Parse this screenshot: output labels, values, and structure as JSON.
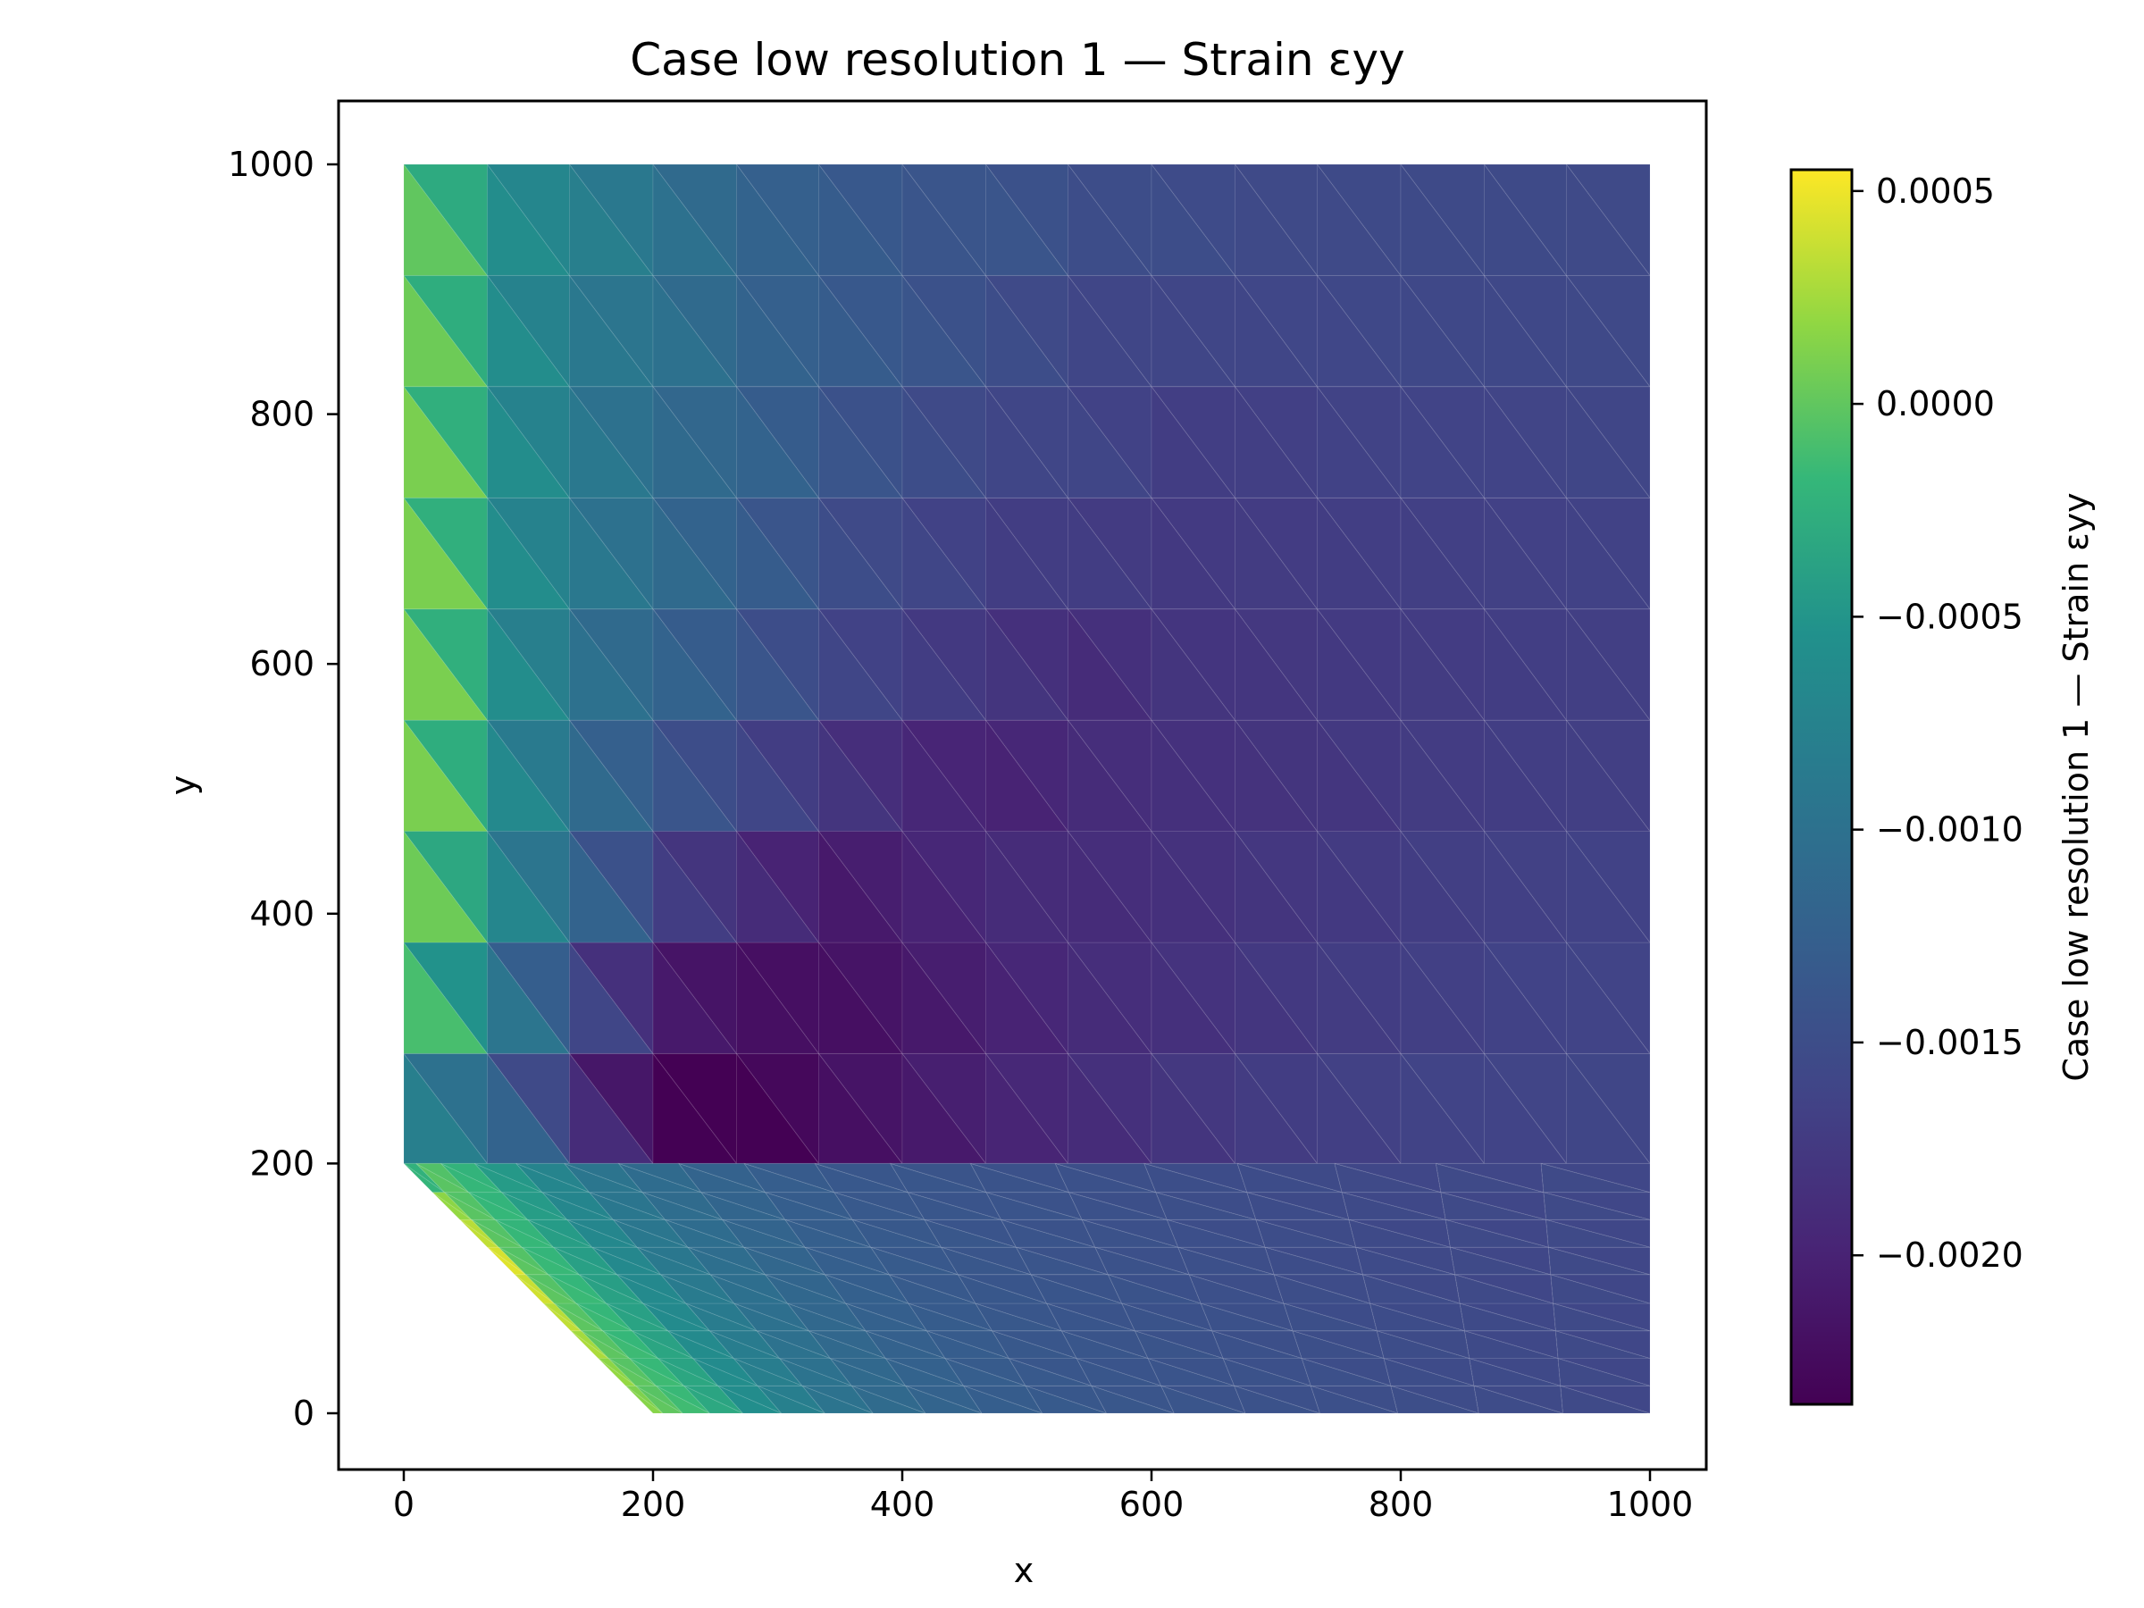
{
  "chart_data": {
    "type": "heatmap",
    "title": "Case low resolution 1 — Strain εyy",
    "xlabel": "x",
    "ylabel": "y",
    "xlim": [
      -50,
      1050
    ],
    "ylim": [
      -50,
      1050
    ],
    "x_ticks": [
      0,
      200,
      400,
      600,
      800,
      1000
    ],
    "y_ticks": [
      0,
      200,
      400,
      600,
      800,
      1000
    ],
    "x_tick_labels": [
      "0",
      "200",
      "400",
      "600",
      "800",
      "1000"
    ],
    "y_tick_labels": [
      "0",
      "200",
      "400",
      "600",
      "800",
      "1000"
    ],
    "domain_outline": [
      [
        0,
        200
      ],
      [
        0,
        1000
      ],
      [
        1000,
        1000
      ],
      [
        1000,
        0
      ],
      [
        200,
        0
      ]
    ],
    "colormap": "viridis",
    "colorbar": {
      "label": "Case low resolution 1 — Strain εyy",
      "vmin": -0.00235,
      "vmax": 0.00055,
      "ticks": [
        0.0005,
        0.0,
        -0.0005,
        -0.001,
        -0.0015,
        -0.002
      ],
      "tick_labels": [
        "0.0005",
        "0.0000",
        "−0.0005",
        "−0.0010",
        "−0.0015",
        "−0.0020"
      ]
    },
    "upper_region": {
      "y_edges": [
        200,
        288,
        377,
        466,
        555,
        644,
        733,
        822,
        911,
        1000
      ],
      "x_edges": [
        0,
        67,
        133,
        200,
        267,
        333,
        400,
        467,
        533,
        600,
        667,
        733,
        800,
        867,
        933,
        1000
      ],
      "cell_centers_y": [
        244,
        333,
        422,
        511,
        600,
        689,
        778,
        866,
        955
      ],
      "values": [
        [
          -0.0008,
          -0.0012,
          -0.0019,
          -0.00235,
          -0.00235,
          -0.0022,
          -0.0021,
          -0.00198,
          -0.0019,
          -0.0018,
          -0.00172,
          -0.00168,
          -0.00164,
          -0.00162,
          -0.0016
        ],
        [
          -0.0001,
          -0.00095,
          -0.0016,
          -0.0021,
          -0.0022,
          -0.0022,
          -0.0021,
          -0.002,
          -0.0019,
          -0.00185,
          -0.00178,
          -0.00172,
          -0.00168,
          -0.00165,
          -0.00162
        ],
        [
          5e-05,
          -0.0007,
          -0.0012,
          -0.0017,
          -0.0019,
          -0.0021,
          -0.002,
          -0.0019,
          -0.0019,
          -0.00185,
          -0.0018,
          -0.00175,
          -0.0017,
          -0.00167,
          -0.00165
        ],
        [
          0.0001,
          -0.00065,
          -0.0011,
          -0.0014,
          -0.0016,
          -0.0018,
          -0.00195,
          -0.002,
          -0.0019,
          -0.00185,
          -0.00182,
          -0.00178,
          -0.00172,
          -0.0017,
          -0.00168
        ],
        [
          0.0001,
          -0.0006,
          -0.001,
          -0.0012,
          -0.0014,
          -0.0016,
          -0.0017,
          -0.0018,
          -0.0019,
          -0.0018,
          -0.00178,
          -0.00175,
          -0.00172,
          -0.0017,
          -0.00168
        ],
        [
          0.0001,
          -0.0006,
          -0.0009,
          -0.0011,
          -0.0013,
          -0.0015,
          -0.0016,
          -0.0017,
          -0.0017,
          -0.00175,
          -0.00172,
          -0.0017,
          -0.00168,
          -0.00166,
          -0.00165
        ],
        [
          0.0001,
          -0.0006,
          -0.0009,
          -0.0011,
          -0.0012,
          -0.0014,
          -0.0015,
          -0.0016,
          -0.0016,
          -0.0017,
          -0.00168,
          -0.00165,
          -0.00163,
          -0.00162,
          -0.0016
        ],
        [
          5e-05,
          -0.0006,
          -0.0009,
          -0.001,
          -0.0012,
          -0.0013,
          -0.0014,
          -0.0015,
          -0.0016,
          -0.0016,
          -0.0016,
          -0.00158,
          -0.00157,
          -0.00157,
          -0.00156
        ],
        [
          0.0,
          -0.0006,
          -0.0008,
          -0.001,
          -0.0012,
          -0.0013,
          -0.0014,
          -0.0014,
          -0.0015,
          -0.0015,
          -0.00155,
          -0.00155,
          -0.00154,
          -0.00154,
          -0.00155
        ]
      ]
    },
    "lower_region": {
      "y_edges": [
        0,
        22,
        44,
        66,
        88,
        111,
        133,
        155,
        177,
        200
      ],
      "cell_centers_y": [
        11,
        33,
        55,
        77,
        100,
        122,
        144,
        166,
        188
      ],
      "columns_along_row": [
        {
          "offset": 0,
          "value": 0.0001
        },
        {
          "offset": 45,
          "value": -0.0002
        },
        {
          "offset": 90,
          "value": -0.0006
        },
        {
          "offset": 140,
          "value": -0.0009
        },
        {
          "offset": 200,
          "value": -0.0011
        },
        {
          "offset": 270,
          "value": -0.00125
        },
        {
          "offset": 350,
          "value": -0.00135
        },
        {
          "offset": 440,
          "value": -0.0014
        },
        {
          "offset": 540,
          "value": -0.00145
        },
        {
          "offset": 650,
          "value": -0.0015
        },
        {
          "offset": 760,
          "value": -0.00155
        },
        {
          "offset": 880,
          "value": -0.00155
        }
      ],
      "chamfer_edge_values": [
        0.00015,
        0.0002,
        0.00028,
        0.00035,
        0.0004,
        0.00045,
        0.00035,
        0.0002,
        -0.0002
      ]
    }
  }
}
